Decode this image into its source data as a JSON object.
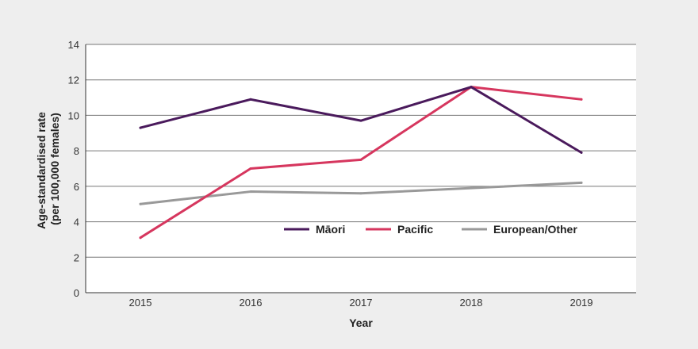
{
  "chart_data": {
    "type": "line",
    "title": "",
    "xlabel": "Year",
    "ylabel_line1": "Age-standardised rate",
    "ylabel_line2": "(per 100,000 females)",
    "categories": [
      "2015",
      "2016",
      "2017",
      "2018",
      "2019"
    ],
    "y_ticks": [
      "0",
      "2",
      "4",
      "6",
      "8",
      "10",
      "12",
      "14"
    ],
    "ylim": [
      0,
      14
    ],
    "grid": true,
    "legend_position": "inside-center",
    "series": [
      {
        "name": "Māori",
        "color": "#4a1a5c",
        "values": [
          9.3,
          10.9,
          9.7,
          11.6,
          7.9
        ]
      },
      {
        "name": "Pacific",
        "color": "#d6365e",
        "values": [
          3.1,
          7.0,
          7.5,
          11.6,
          10.9
        ]
      },
      {
        "name": "European/Other",
        "color": "#999999",
        "values": [
          5.0,
          5.7,
          5.6,
          5.9,
          6.2
        ]
      }
    ]
  }
}
